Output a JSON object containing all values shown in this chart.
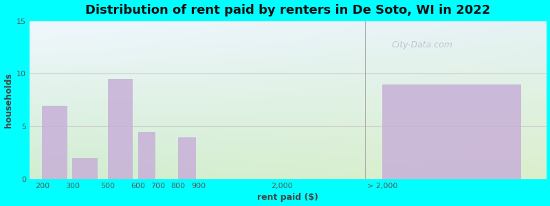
{
  "title": "Distribution of rent paid by renters in De Soto, WI in 2022",
  "xlabel": "rent paid ($)",
  "ylabel": "households",
  "bar_labels": [
    "200",
    "300",
    "500",
    "600",
    "700",
    "800",
    "900",
    "2,000",
    "> 2,000"
  ],
  "bar_values": [
    7,
    2,
    9.5,
    4.5,
    0,
    4,
    0,
    0,
    9
  ],
  "bar_positions": [
    0,
    1.2,
    2.6,
    3.8,
    4.6,
    5.4,
    6.2,
    9.5,
    13.5
  ],
  "bar_widths": [
    1.0,
    1.0,
    1.0,
    0.7,
    0.7,
    0.7,
    0.7,
    0.5,
    5.5
  ],
  "bar_color": "#c8b0d8",
  "background_color_tl": "#e0f0e8",
  "background_color_tr": "#f0f8ff",
  "background_color_bl": "#d0edd0",
  "background_color_br": "#e8f5f8",
  "ylim": [
    0,
    15
  ],
  "yticks": [
    0,
    5,
    10,
    15
  ],
  "xlim": [
    -0.5,
    20.0
  ],
  "title_fontsize": 13,
  "axis_label_fontsize": 9,
  "tick_fontsize": 8,
  "watermark_text": "City-Data.com",
  "separator_x": 12.8,
  "grid_color": "#dddddd"
}
